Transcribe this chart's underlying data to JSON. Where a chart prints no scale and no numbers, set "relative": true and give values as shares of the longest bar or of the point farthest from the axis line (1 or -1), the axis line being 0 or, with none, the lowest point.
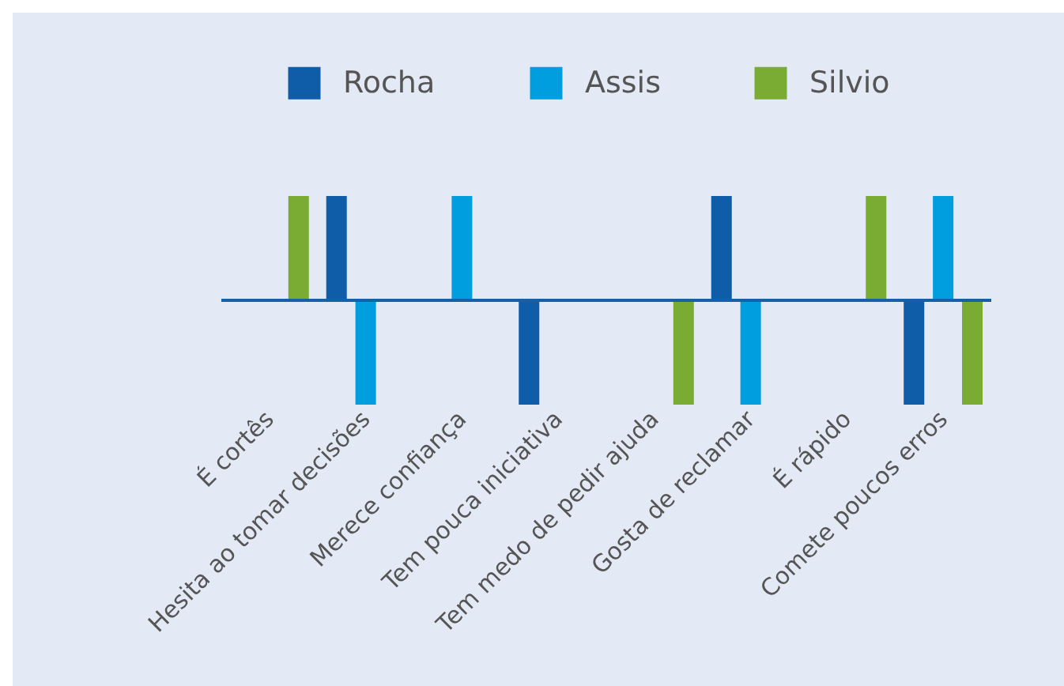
{
  "chart_data": {
    "type": "bar",
    "relative": true,
    "legend": "top",
    "ref_lines": [
      {
        "axis": "y",
        "value": 0,
        "color": "#1560a8"
      }
    ],
    "categories": [
      "É cortês",
      "Hesita ao tomar decisões",
      "Merece confiança",
      "Tem pouca iniciativa",
      "Tem medo de pedir ajuda",
      "Gosta de reclamar",
      "É rápido",
      "Comete poucos erros"
    ],
    "series": [
      {
        "name": "Rocha",
        "color": "#0f5ca8",
        "values": [
          null,
          1,
          null,
          -1,
          null,
          1,
          null,
          -1
        ]
      },
      {
        "name": "Assis",
        "color": "#009ddf",
        "values": [
          null,
          -1,
          1,
          null,
          null,
          -1,
          null,
          1
        ]
      },
      {
        "name": "Silvio",
        "color": "#7aac34",
        "values": [
          1,
          null,
          null,
          null,
          -1,
          null,
          1,
          -1
        ]
      }
    ]
  }
}
